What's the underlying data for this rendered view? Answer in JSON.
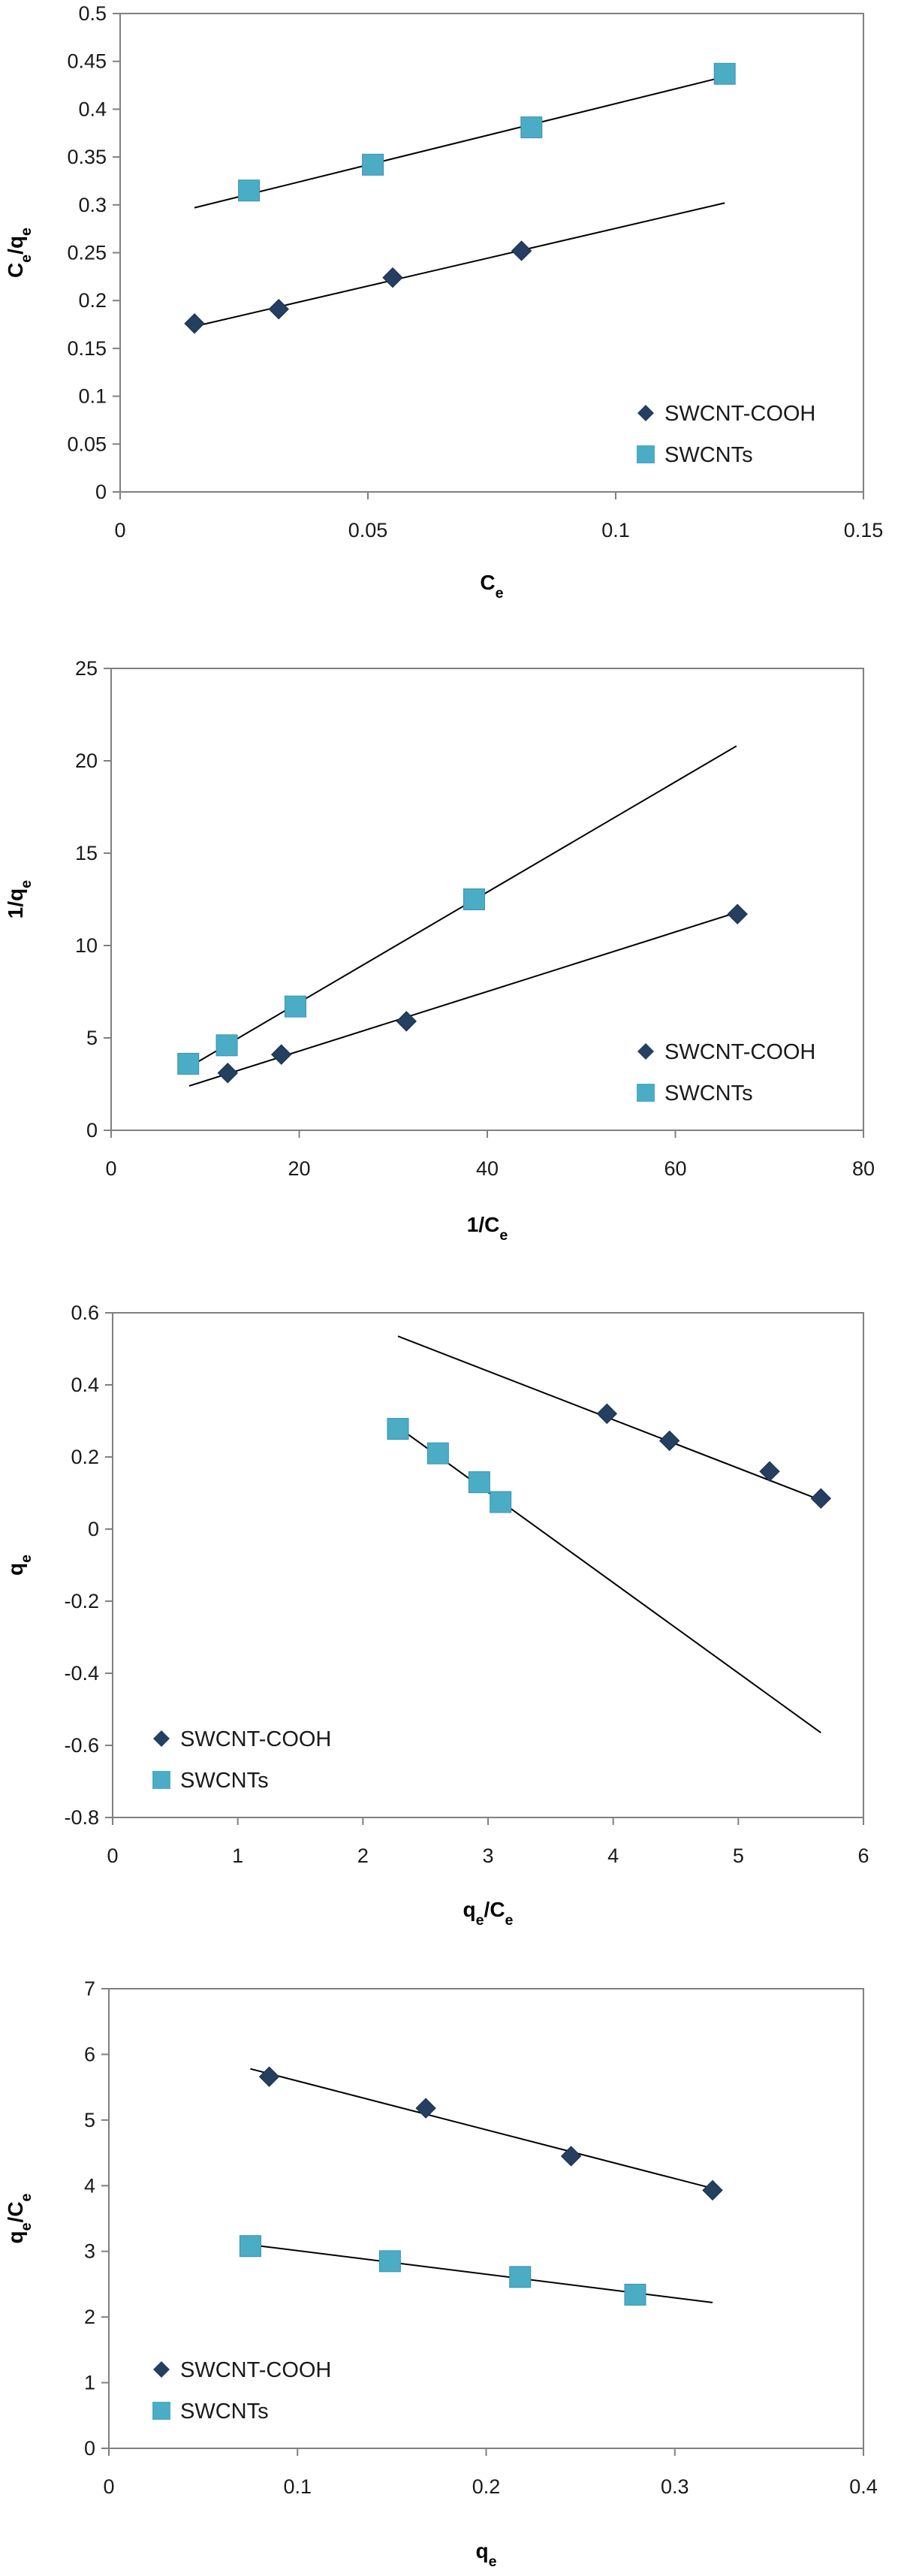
{
  "colors": {
    "SWCNT-COOH": "#243F60",
    "SWCNTs": "#4BACC6",
    "trendline": "#000000",
    "axis": "#808080"
  },
  "chart_data": [
    {
      "type": "scatter",
      "xlabel": "Ce",
      "ylabel": "Ce/qe",
      "xlim": [
        0,
        0.15
      ],
      "ylim": [
        0,
        0.5
      ],
      "xticks": [
        "0",
        "0.05",
        "0.1",
        "0.15"
      ],
      "yticks": [
        "0",
        "0.05",
        "0.1",
        "0.15",
        "0.2",
        "0.25",
        "0.3",
        "0.35",
        "0.4",
        "0.45",
        "0.5"
      ],
      "grid": false,
      "legend": "bottom-right",
      "series": [
        {
          "name": "SWCNT-COOH",
          "marker": "diamond",
          "x": [
            0.015,
            0.032,
            0.055,
            0.081
          ],
          "y": [
            0.176,
            0.191,
            0.224,
            0.252
          ],
          "trendline": [
            [
              0.015,
              0.173
            ],
            [
              0.122,
              0.302
            ]
          ]
        },
        {
          "name": "SWCNTs",
          "marker": "square",
          "x": [
            0.026,
            0.051,
            0.083,
            0.122
          ],
          "y": [
            0.315,
            0.342,
            0.381,
            0.437
          ],
          "trendline": [
            [
              0.015,
              0.297
            ],
            [
              0.122,
              0.434
            ]
          ]
        }
      ]
    },
    {
      "type": "scatter",
      "xlabel": "1/Ce",
      "ylabel": "1/qe",
      "xlim": [
        0,
        80
      ],
      "ylim": [
        0,
        25
      ],
      "xticks": [
        "0",
        "20",
        "40",
        "60",
        "80"
      ],
      "yticks": [
        "0",
        "5",
        "10",
        "15",
        "20",
        "25"
      ],
      "grid": false,
      "legend": "bottom-right",
      "series": [
        {
          "name": "SWCNT-COOH",
          "marker": "diamond",
          "x": [
            12.4,
            18.1,
            31.4,
            66.6
          ],
          "y": [
            3.1,
            4.1,
            5.9,
            11.7
          ],
          "trendline": [
            [
              8.3,
              2.4
            ],
            [
              66.6,
              11.8
            ]
          ]
        },
        {
          "name": "SWCNTs",
          "marker": "square",
          "x": [
            8.2,
            12.3,
            19.6,
            38.6
          ],
          "y": [
            3.6,
            4.6,
            6.7,
            12.5
          ],
          "trendline": [
            [
              8.2,
              3.4
            ],
            [
              66.5,
              20.8
            ]
          ]
        }
      ]
    },
    {
      "type": "scatter",
      "xlabel": "qe/Ce",
      "ylabel": "qe",
      "xlim": [
        0,
        6
      ],
      "ylim": [
        -0.8,
        0.6
      ],
      "xticks": [
        "0",
        "1",
        "2",
        "3",
        "4",
        "5",
        "6"
      ],
      "yticks": [
        "-0.8",
        "-0.6",
        "-0.4",
        "-0.2",
        "0",
        "0.2",
        "0.4",
        "0.6"
      ],
      "grid": false,
      "legend": "bottom-left",
      "series": [
        {
          "name": "SWCNT-COOH",
          "marker": "diamond",
          "x": [
            3.95,
            4.45,
            5.25,
            5.66
          ],
          "y": [
            0.32,
            0.245,
            0.16,
            0.085
          ],
          "trendline": [
            [
              2.28,
              0.535
            ],
            [
              5.66,
              0.08
            ]
          ]
        },
        {
          "name": "SWCNTs",
          "marker": "square",
          "x": [
            2.28,
            2.6,
            2.93,
            3.1
          ],
          "y": [
            0.278,
            0.21,
            0.13,
            0.075
          ],
          "trendline": [
            [
              2.28,
              0.283
            ],
            [
              5.66,
              -0.565
            ]
          ]
        }
      ]
    },
    {
      "type": "scatter",
      "xlabel": "qe",
      "ylabel": "qe/Ce",
      "xlim": [
        0,
        0.4
      ],
      "ylim": [
        0,
        7
      ],
      "xticks": [
        "0",
        "0.1",
        "0.2",
        "0.3",
        "0.4"
      ],
      "yticks": [
        "0",
        "1",
        "2",
        "3",
        "4",
        "5",
        "6",
        "7"
      ],
      "grid": false,
      "legend": "bottom-left",
      "series": [
        {
          "name": "SWCNT-COOH",
          "marker": "diamond",
          "x": [
            0.085,
            0.168,
            0.245,
            0.32
          ],
          "y": [
            5.66,
            5.18,
            4.45,
            3.93
          ],
          "trendline": [
            [
              0.075,
              5.78
            ],
            [
              0.32,
              3.96
            ]
          ]
        },
        {
          "name": "SWCNTs",
          "marker": "square",
          "x": [
            0.075,
            0.149,
            0.218,
            0.279
          ],
          "y": [
            3.08,
            2.85,
            2.61,
            2.34
          ],
          "trendline": [
            [
              0.075,
              3.1
            ],
            [
              0.32,
              2.22
            ]
          ]
        }
      ]
    }
  ]
}
